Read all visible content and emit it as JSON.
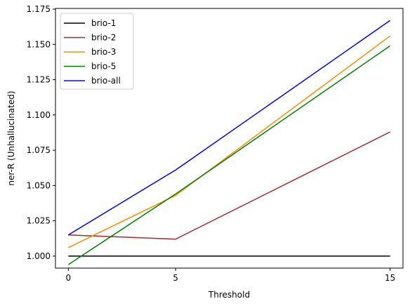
{
  "chart_data": {
    "type": "line",
    "xlabel": "Threshold",
    "ylabel": "ner-R (Unhallucinated)",
    "x": [
      0,
      5,
      15
    ],
    "x_ticks": [
      "0",
      "5",
      "15"
    ],
    "xlim": [
      -0.6,
      15.6
    ],
    "ylim": [
      0.9915,
      1.1755
    ],
    "y_ticks": [
      "1.000",
      "1.025",
      "1.050",
      "1.075",
      "1.100",
      "1.125",
      "1.150",
      "1.175"
    ],
    "y_tick_values": [
      1.0,
      1.025,
      1.05,
      1.075,
      1.1,
      1.125,
      1.15,
      1.175
    ],
    "grid": false,
    "legend_position": "top-left",
    "series": [
      {
        "name": "brio-1",
        "color": "#000000",
        "values": [
          1.0,
          1.0,
          1.0
        ]
      },
      {
        "name": "brio-2",
        "color": "#a52a2a",
        "values": [
          1.015,
          1.012,
          1.088
        ]
      },
      {
        "name": "brio-3",
        "color": "#ff8c00",
        "values": [
          1.006,
          1.043,
          1.156
        ]
      },
      {
        "name": "brio-5",
        "color": "#008000",
        "values": [
          0.994,
          1.044,
          1.149
        ]
      },
      {
        "name": "brio-all",
        "color": "#0000ff",
        "values": [
          1.015,
          1.061,
          1.167
        ]
      }
    ]
  }
}
